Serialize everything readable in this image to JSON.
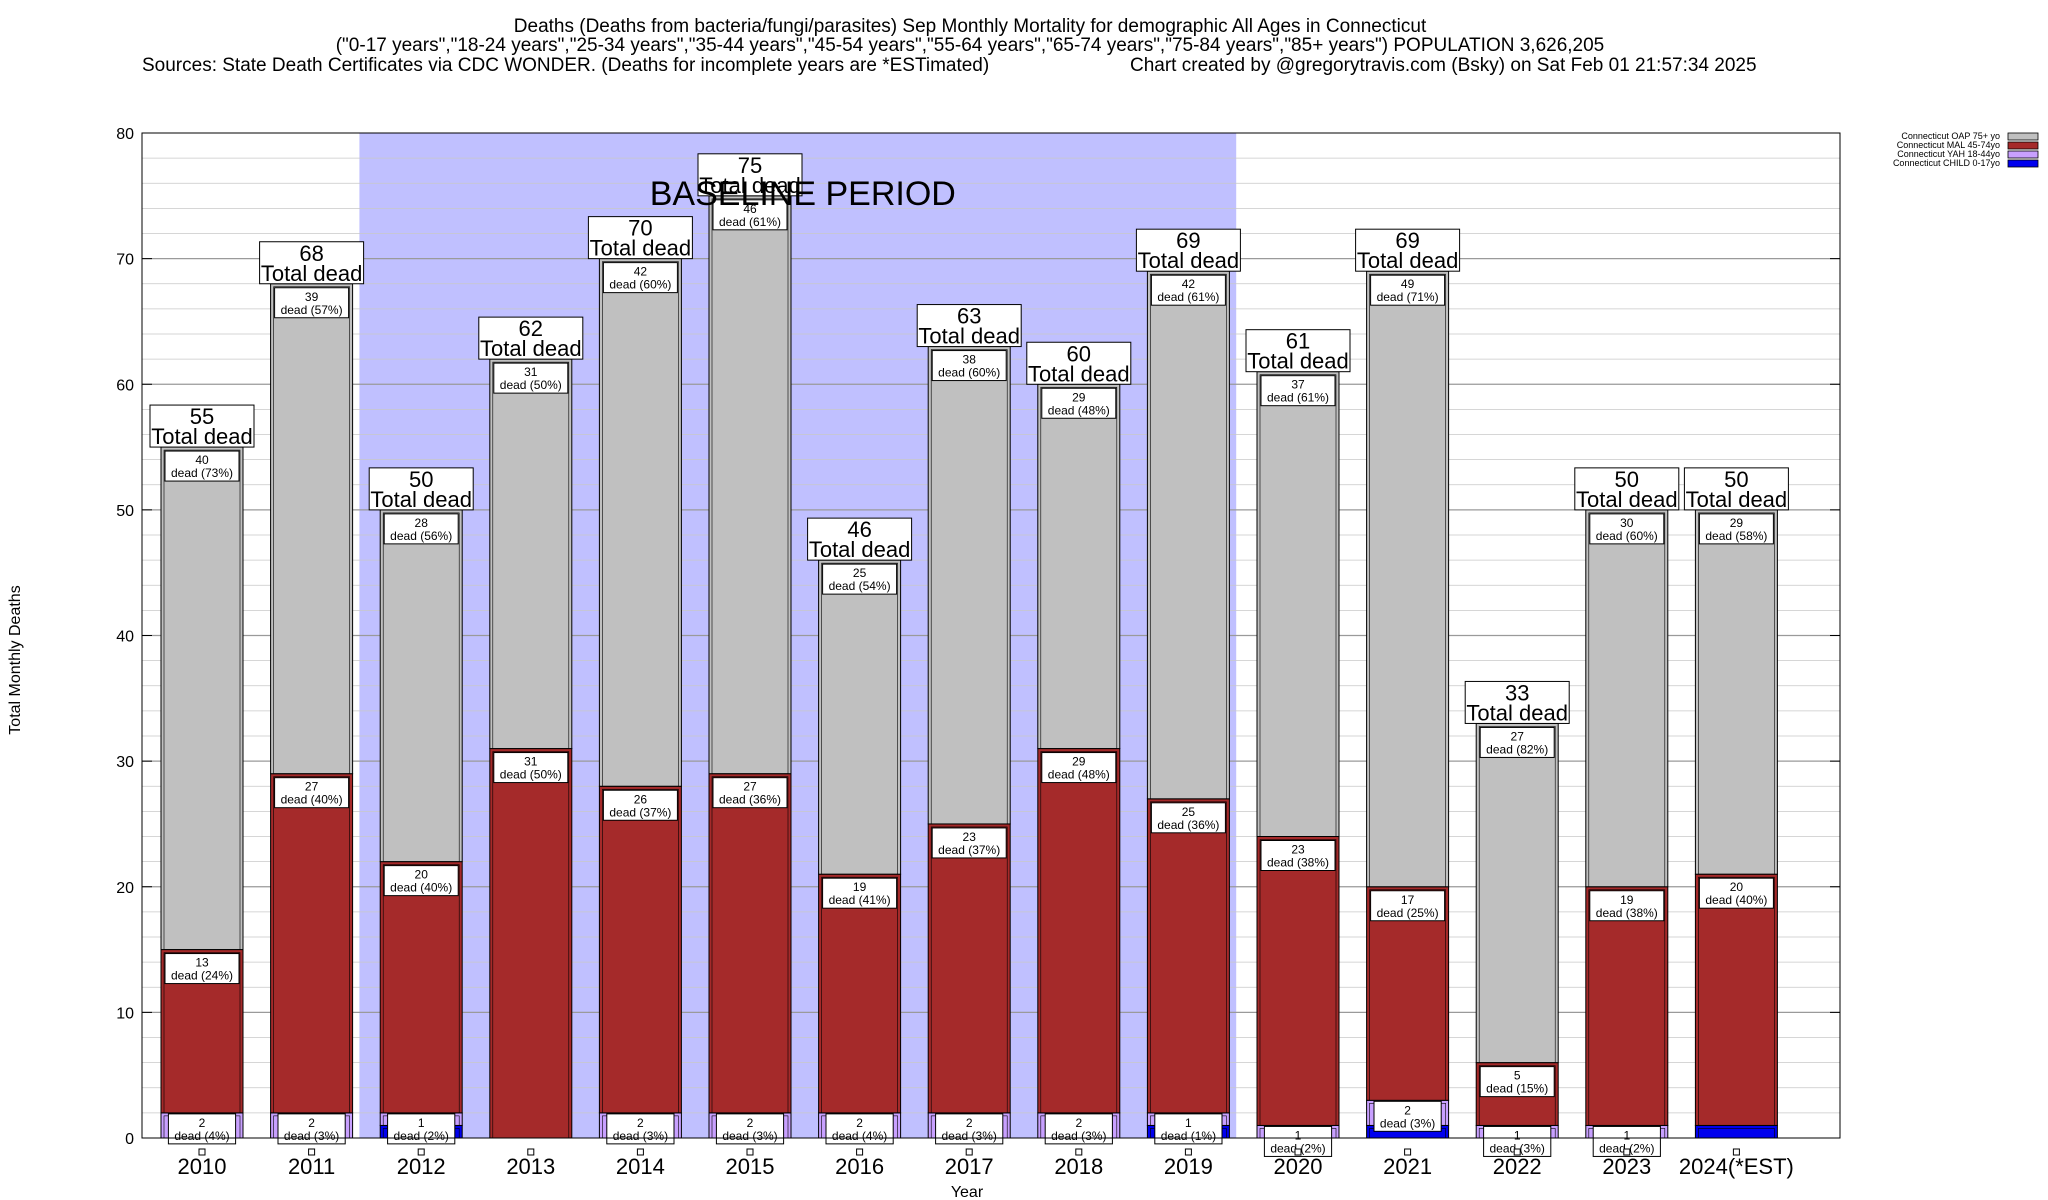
{
  "title": {
    "line1": "Deaths (Deaths from bacteria/fungi/parasites) Sep Monthly Mortality for demographic All Ages in Connecticut",
    "line2": "(\"0-17 years\",\"18-24 years\",\"25-34 years\",\"35-44 years\",\"45-54 years\",\"55-64 years\",\"65-74 years\",\"75-84 years\",\"85+ years\") POPULATION 3,626,205",
    "line3_left": "Sources: State Death Certificates via CDC WONDER. (Deaths for incomplete years are *ESTimated)",
    "line3_right": "Chart created by @gregorytravis.com (Bsky) on Sat Feb 01 21:57:34 2025"
  },
  "baseline_label": "BASELINE PERIOD",
  "total_label": "Total dead",
  "segment_suffix": "dead",
  "colors": {
    "oap": "#c0c0c0",
    "mal": "#a52a2a",
    "yah": "#c8a0ff",
    "child": "#0000ee",
    "baseline": "#c0c0ff"
  },
  "chart_data": {
    "type": "bar",
    "stacked": true,
    "categories": [
      "2010",
      "2011",
      "2012",
      "2013",
      "2014",
      "2015",
      "2016",
      "2017",
      "2018",
      "2019",
      "2020",
      "2021",
      "2022",
      "2023",
      "2024(*EST)"
    ],
    "totals": [
      55,
      68,
      50,
      62,
      70,
      75,
      46,
      63,
      60,
      69,
      61,
      69,
      33,
      50,
      50
    ],
    "series": [
      {
        "key": "child",
        "name": "Connecticut CHILD 0-17yo",
        "values": [
          0,
          0,
          1,
          0,
          0,
          0,
          0,
          0,
          0,
          1,
          0,
          1,
          0,
          0,
          1
        ],
        "labels": [
          "",
          "",
          "",
          "",
          "",
          "",
          "",
          "",
          "",
          "",
          "",
          "",
          "",
          "",
          ""
        ]
      },
      {
        "key": "yah",
        "name": "Connecticut YAH 18-44yo",
        "values": [
          2,
          2,
          1,
          0,
          2,
          2,
          2,
          2,
          2,
          1,
          1,
          2,
          1,
          1,
          0
        ],
        "labels": [
          "2 dead (4%)",
          "2 dead (3%)",
          "1 dead (2%)",
          "",
          "2 dead (3%)",
          "2 dead (3%)",
          "2 dead (4%)",
          "2 dead (3%)",
          "2 dead (3%)",
          "1 dead (1%)",
          "1 dead (2%)",
          "2 dead (3%)",
          "1 dead (3%)",
          "1 dead (2%)",
          ""
        ]
      },
      {
        "key": "mal",
        "name": "Connecticut MAL 45-74yo",
        "values": [
          13,
          27,
          20,
          31,
          26,
          27,
          19,
          23,
          29,
          25,
          23,
          17,
          5,
          19,
          20
        ],
        "labels": [
          "13 dead (24%)",
          "27 dead (40%)",
          "20 dead (40%)",
          "31 dead (50%)",
          "26 dead (37%)",
          "27 dead (36%)",
          "19 dead (41%)",
          "23 dead (37%)",
          "29 dead (48%)",
          "25 dead (36%)",
          "23 dead (38%)",
          "17 dead (25%)",
          "5 dead (15%)",
          "19 dead (38%)",
          "20 dead (40%)"
        ]
      },
      {
        "key": "oap",
        "name": "Connecticut OAP 75+ yo",
        "values": [
          40,
          39,
          28,
          31,
          42,
          46,
          25,
          38,
          29,
          42,
          37,
          49,
          27,
          30,
          29
        ],
        "labels": [
          "40 dead (73%)",
          "39 dead (57%)",
          "28 dead (56%)",
          "31 dead (50%)",
          "42 dead (60%)",
          "46 dead (61%)",
          "25 dead (54%)",
          "38 dead (60%)",
          "29 dead (48%)",
          "42 dead (61%)",
          "37 dead (61%)",
          "49 dead (71%)",
          "27 dead (82%)",
          "30 dead (60%)",
          "29 dead (58%)"
        ]
      }
    ],
    "baseline_period": [
      "2012",
      "2019"
    ],
    "xlabel": "Year",
    "ylabel": "Total Monthly Deaths",
    "ylim": [
      0,
      80
    ],
    "yticks": [
      0,
      10,
      20,
      30,
      40,
      50,
      60,
      70,
      80
    ],
    "grid": true,
    "legend_position": "top-right",
    "legend_order": [
      "oap",
      "mal",
      "yah",
      "child"
    ]
  }
}
